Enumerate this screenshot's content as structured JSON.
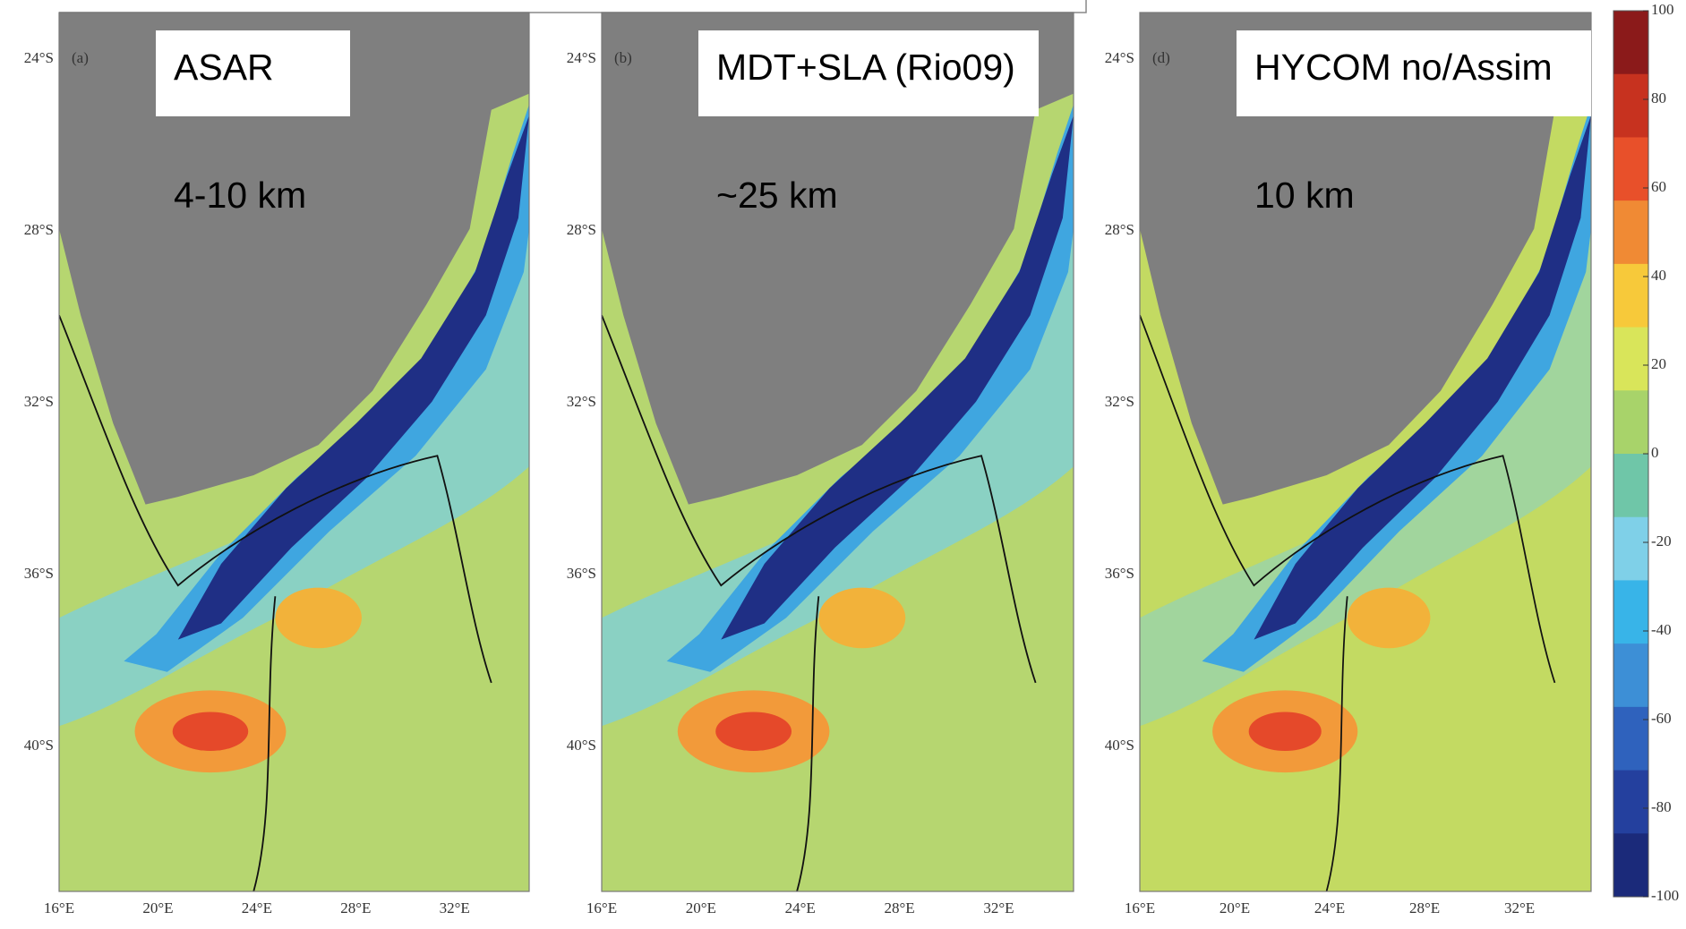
{
  "panels": [
    {
      "letter": "(a)",
      "title": "ASAR",
      "resolution": "4-10 km",
      "yticks": [
        "24°S",
        "28°S",
        "32°S",
        "36°S",
        "40°S"
      ],
      "xticks": [
        "16°E",
        "20°E",
        "24°E",
        "28°E",
        "32°E"
      ]
    },
    {
      "letter": "(b)",
      "title": "MDT+SLA (Rio09)",
      "resolution": "~25 km",
      "yticks": [
        "24°S",
        "28°S",
        "32°S",
        "36°S",
        "40°S"
      ],
      "xticks": [
        "16°E",
        "20°E",
        "24°E",
        "28°E",
        "32°E"
      ]
    },
    {
      "letter": "(d)",
      "title": "HYCOM  no/Assim",
      "resolution": "10 km",
      "yticks": [
        "24°S",
        "28°S",
        "32°S",
        "36°S",
        "40°S"
      ],
      "xticks": [
        "16°E",
        "20°E",
        "24°E",
        "28°E",
        "32°E"
      ]
    }
  ],
  "colorbar": {
    "ticks": [
      100,
      80,
      60,
      40,
      20,
      0,
      -20,
      -40,
      -60,
      -80,
      -100
    ],
    "colors": [
      "#8b1a1a",
      "#c7321f",
      "#e8502a",
      "#f08a34",
      "#f7c93a",
      "#d9e55a",
      "#a8d36a",
      "#6fc6a8",
      "#7fd0e8",
      "#38b4e8",
      "#3d8fd6",
      "#2f62bd",
      "#24409e",
      "#1b2a7a"
    ]
  }
}
